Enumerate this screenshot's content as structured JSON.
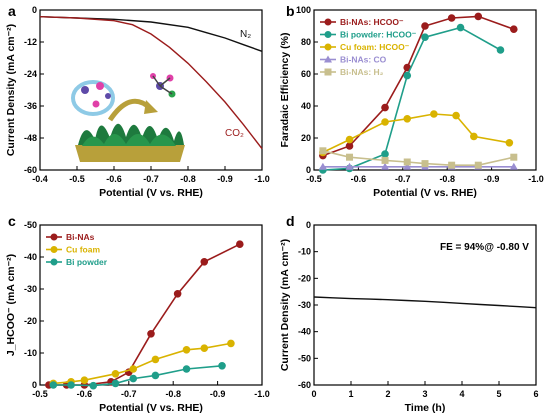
{
  "chart_data": [
    {
      "panel": "a",
      "type": "line",
      "xlabel": "Potential (V vs. RHE)",
      "ylabel": "Current Density (mA cm⁻²)",
      "xlim": [
        -0.4,
        -1.0
      ],
      "ylim": [
        -60,
        0
      ],
      "xticks": [
        "-0.4",
        "-0.5",
        "-0.6",
        "-0.7",
        "-0.8",
        "-0.9",
        "-1.0"
      ],
      "yticks": [
        "0",
        "-12",
        "-24",
        "-36",
        "-48",
        "-60"
      ],
      "series": [
        {
          "name": "N₂",
          "color": "#111111",
          "x": [
            -0.4,
            -0.5,
            -0.6,
            -0.7,
            -0.8,
            -0.85,
            -0.9,
            -0.95,
            -1.0
          ],
          "y": [
            -2.5,
            -3.0,
            -3.5,
            -4.5,
            -6.5,
            -8.5,
            -10.5,
            -13.0,
            -15.5
          ]
        },
        {
          "name": "CO₂",
          "color": "#9b1c1c",
          "x": [
            -0.4,
            -0.5,
            -0.6,
            -0.65,
            -0.7,
            -0.75,
            -0.8,
            -0.85,
            -0.9,
            -0.95,
            -1.0
          ],
          "y": [
            -2.5,
            -3.0,
            -4.0,
            -5.5,
            -9.0,
            -14.0,
            -20.0,
            -27.0,
            -34.5,
            -43.0,
            -52.0
          ]
        }
      ],
      "annotations": [
        "N₂",
        "CO₂"
      ]
    },
    {
      "panel": "b",
      "type": "line",
      "xlabel": "Potential (V vs. RHE)",
      "ylabel": "Faradaic Efficiency (%)",
      "xlim": [
        -0.5,
        -1.0
      ],
      "ylim": [
        0,
        100
      ],
      "xticks": [
        "-0.5",
        "-0.6",
        "-0.7",
        "-0.8",
        "-0.9",
        "-1.0"
      ],
      "yticks": [
        "0",
        "20",
        "40",
        "60",
        "80",
        "100"
      ],
      "series": [
        {
          "name": "Bi-NAs: HCOO⁻",
          "color": "#9b1c1c",
          "marker": "circle",
          "x": [
            -0.52,
            -0.58,
            -0.66,
            -0.71,
            -0.75,
            -0.81,
            -0.87,
            -0.95
          ],
          "y": [
            9,
            15,
            39,
            64,
            90,
            95,
            96,
            88
          ]
        },
        {
          "name": "Bi powder: HCOO⁻",
          "color": "#1f9e8a",
          "marker": "circle",
          "x": [
            -0.52,
            -0.58,
            -0.66,
            -0.71,
            -0.75,
            -0.83,
            -0.92
          ],
          "y": [
            0,
            1,
            10,
            59,
            83,
            89,
            75
          ]
        },
        {
          "name": "Cu foam: HCOO⁻",
          "color": "#d9b300",
          "marker": "circle",
          "x": [
            -0.52,
            -0.58,
            -0.66,
            -0.71,
            -0.77,
            -0.82,
            -0.86,
            -0.94
          ],
          "y": [
            11,
            19,
            30,
            32,
            35,
            34,
            21,
            17
          ]
        },
        {
          "name": "Bi-NAs: CO",
          "color": "#9a8ed1",
          "marker": "triangle",
          "x": [
            -0.52,
            -0.58,
            -0.66,
            -0.71,
            -0.75,
            -0.81,
            -0.87,
            -0.95
          ],
          "y": [
            2,
            2,
            2,
            2,
            2,
            2,
            2,
            2
          ]
        },
        {
          "name": "Bi-NAs: H₂",
          "color": "#c8bf8e",
          "marker": "square",
          "x": [
            -0.52,
            -0.58,
            -0.66,
            -0.71,
            -0.75,
            -0.81,
            -0.87,
            -0.95
          ],
          "y": [
            12,
            8,
            6,
            5,
            4,
            3,
            3,
            8
          ]
        }
      ]
    },
    {
      "panel": "c",
      "type": "line",
      "xlabel": "Potential (V vs. RHE)",
      "ylabel": "J_HCOO⁻ (mA cm⁻²)",
      "xlim": [
        -0.5,
        -1.0
      ],
      "ylim": [
        0,
        -50
      ],
      "xticks": [
        "-0.5",
        "-0.6",
        "-0.7",
        "-0.8",
        "-0.9",
        "-1.0"
      ],
      "yticks": [
        "0",
        "-10",
        "-20",
        "-30",
        "-40",
        "-50"
      ],
      "series": [
        {
          "name": "Bi-NAs",
          "color": "#9b1c1c",
          "x": [
            -0.52,
            -0.56,
            -0.6,
            -0.66,
            -0.7,
            -0.75,
            -0.81,
            -0.87,
            -0.95
          ],
          "y": [
            0,
            0,
            0,
            -1,
            -4,
            -16,
            -28.5,
            -38.5,
            -44
          ]
        },
        {
          "name": "Cu foam",
          "color": "#d9b300",
          "x": [
            -0.53,
            -0.57,
            -0.6,
            -0.67,
            -0.71,
            -0.76,
            -0.83,
            -0.87,
            -0.93
          ],
          "y": [
            -0.5,
            -1,
            -1.5,
            -3.5,
            -5,
            -8,
            -11,
            -11.5,
            -13
          ]
        },
        {
          "name": "Bi powder",
          "color": "#1f9e8a",
          "x": [
            -0.53,
            -0.57,
            -0.62,
            -0.67,
            -0.71,
            -0.76,
            -0.83,
            -0.91
          ],
          "y": [
            0,
            0,
            0.2,
            -0.5,
            -2,
            -3,
            -5,
            -6
          ]
        }
      ]
    },
    {
      "panel": "d",
      "type": "line",
      "xlabel": "Time (h)",
      "ylabel": "Current Density (mA cm⁻²)",
      "xlim": [
        0,
        6
      ],
      "ylim": [
        -60,
        0
      ],
      "xticks": [
        "0",
        "1",
        "2",
        "3",
        "4",
        "5",
        "6"
      ],
      "yticks": [
        "0",
        "-10",
        "-20",
        "-30",
        "-40",
        "-50",
        "-60"
      ],
      "annotation": "FE = 94%@ -0.80 V",
      "series": [
        {
          "name": "",
          "color": "#111111",
          "x": [
            0,
            0.5,
            1,
            1.5,
            2,
            2.5,
            3,
            3.5,
            4,
            4.5,
            5,
            5.5,
            6
          ],
          "y": [
            -27,
            -27.3,
            -27.6,
            -27.8,
            -28,
            -28.3,
            -28.6,
            -29,
            -29.4,
            -29.8,
            -30.2,
            -30.6,
            -31
          ]
        }
      ]
    }
  ],
  "panels": {
    "a": {
      "letter": "a",
      "n2": "N₂",
      "co2": "CO₂"
    },
    "b": {
      "letter": "b"
    },
    "c": {
      "letter": "c"
    },
    "d": {
      "letter": "d",
      "annotation": "FE = 94%@ -0.80 V"
    }
  }
}
